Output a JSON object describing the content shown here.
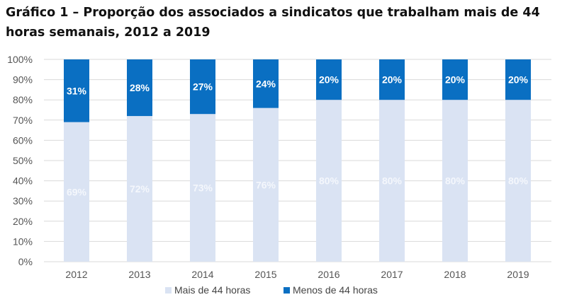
{
  "chart_data": {
    "type": "bar",
    "stacked": true,
    "title": "Gráfico 1 – Proporção dos associados a sindicatos que trabalham mais de 44 horas semanais, 2012 a 2019",
    "categories": [
      "2012",
      "2013",
      "2014",
      "2015",
      "2016",
      "2017",
      "2018",
      "2019"
    ],
    "series": [
      {
        "name": "Mais de 44 horas",
        "color": "#dae3f3",
        "values": [
          69,
          72,
          73,
          76,
          80,
          80,
          80,
          80
        ]
      },
      {
        "name": "Menos de 44 horas",
        "color": "#0a6fc2",
        "values": [
          31,
          28,
          27,
          24,
          20,
          20,
          20,
          20
        ]
      }
    ],
    "xlabel": "",
    "ylabel": "",
    "ylim": [
      0,
      100
    ],
    "yticks": [
      "0%",
      "10%",
      "20%",
      "30%",
      "40%",
      "50%",
      "60%",
      "70%",
      "80%",
      "90%",
      "100%"
    ],
    "grid": true,
    "legend": "bottom"
  }
}
